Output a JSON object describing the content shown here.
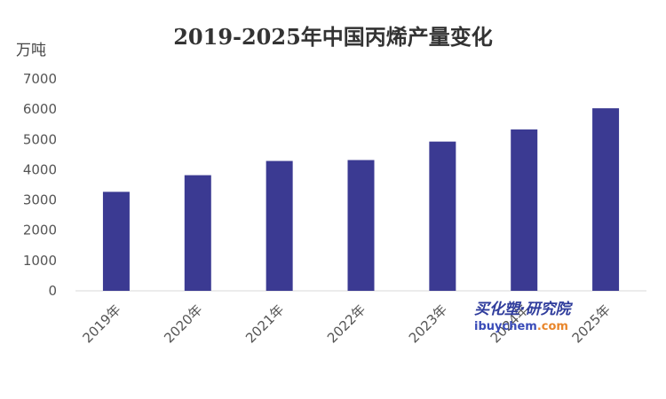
{
  "chart_data": {
    "type": "bar",
    "title": "2019-2025年中国丙烯产量变化",
    "ylabel": "万吨",
    "xlabel": "",
    "categories": [
      "2019年",
      "2020年",
      "2021年",
      "2022年",
      "2023年",
      "2024年",
      "2025年"
    ],
    "values": [
      3270,
      3820,
      4290,
      4320,
      4930,
      5330,
      6030
    ],
    "ylim": [
      0,
      7000
    ],
    "yticks": [
      0,
      1000,
      2000,
      3000,
      4000,
      5000,
      6000,
      7000
    ],
    "grid": false,
    "legend": "none",
    "bar_color": "#3b3a92",
    "axis_color": "#d9d9d9"
  },
  "watermark": {
    "main": "买化塑·研究院",
    "site_prefix": "ibuychem",
    "site_suffix": ".com"
  }
}
